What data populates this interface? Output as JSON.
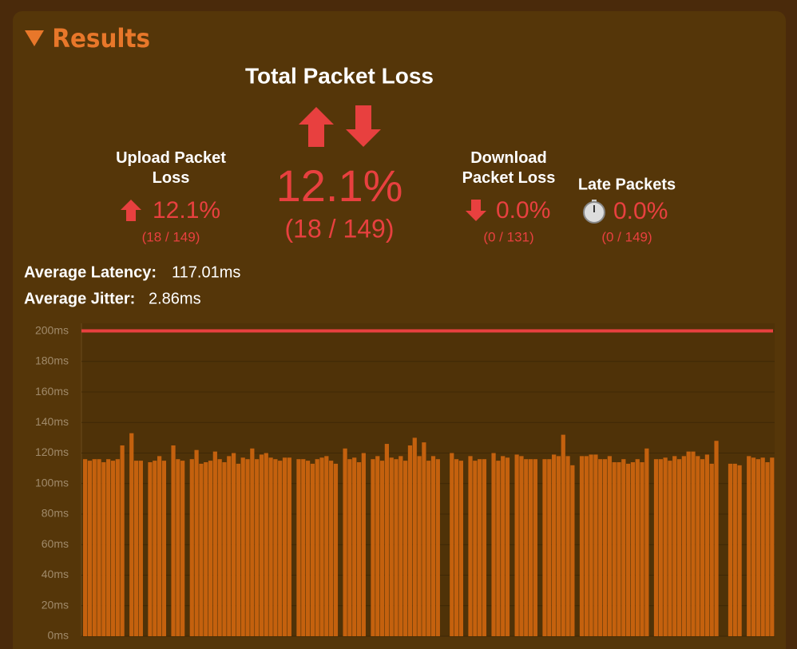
{
  "header": {
    "title": "Results"
  },
  "total": {
    "title": "Total Packet Loss",
    "percent": "12.1%",
    "count": "(18 / 149)"
  },
  "upload": {
    "label": "Upload Packet Loss",
    "percent": "12.1%",
    "count": "(18 / 149)"
  },
  "download": {
    "label": "Download Packet Loss",
    "percent": "0.0%",
    "count": "(0 / 131)"
  },
  "late": {
    "label": "Late Packets",
    "percent": "0.0%",
    "count": "(0 / 149)"
  },
  "latency": {
    "label": "Average Latency:",
    "value": "117.01ms"
  },
  "jitter": {
    "label": "Average Jitter:",
    "value": "2.86ms"
  },
  "chart_data": {
    "type": "bar",
    "color": "#c4610e",
    "threshold": 200,
    "threshold_color": "#e8403f",
    "grid": true,
    "ylim": [
      0,
      205
    ],
    "yticks": [
      {
        "value": 0,
        "label": "0ms"
      },
      {
        "value": 20,
        "label": "20ms"
      },
      {
        "value": 40,
        "label": "40ms"
      },
      {
        "value": 60,
        "label": "60ms"
      },
      {
        "value": 80,
        "label": "80ms"
      },
      {
        "value": 100,
        "label": "100ms"
      },
      {
        "value": 120,
        "label": "120ms"
      },
      {
        "value": 140,
        "label": "140ms"
      },
      {
        "value": 160,
        "label": "160ms"
      },
      {
        "value": 180,
        "label": "180ms"
      },
      {
        "value": 200,
        "label": "200ms"
      }
    ],
    "values": [
      116,
      115,
      116,
      116,
      114,
      116,
      115,
      116,
      125,
      null,
      133,
      115,
      115,
      null,
      114,
      115,
      118,
      115,
      null,
      125,
      116,
      115,
      null,
      116,
      122,
      113,
      114,
      115,
      121,
      116,
      114,
      118,
      120,
      113,
      117,
      116,
      123,
      116,
      119,
      120,
      117,
      116,
      115,
      117,
      117,
      null,
      116,
      116,
      115,
      113,
      116,
      117,
      118,
      115,
      113,
      null,
      123,
      116,
      117,
      114,
      120,
      null,
      116,
      118,
      115,
      126,
      117,
      116,
      118,
      115,
      125,
      130,
      118,
      127,
      115,
      118,
      116,
      null,
      null,
      120,
      116,
      115,
      null,
      118,
      115,
      116,
      116,
      null,
      120,
      115,
      118,
      117,
      null,
      119,
      118,
      116,
      116,
      116,
      null,
      116,
      116,
      119,
      118,
      132,
      118,
      112,
      null,
      118,
      118,
      119,
      119,
      116,
      116,
      118,
      114,
      114,
      116,
      113,
      114,
      116,
      114,
      123,
      null,
      116,
      116,
      117,
      115,
      118,
      116,
      118,
      121,
      121,
      118,
      116,
      119,
      113,
      128,
      null,
      null,
      113,
      113,
      112,
      null,
      118,
      117,
      116,
      117,
      114,
      117
    ]
  }
}
